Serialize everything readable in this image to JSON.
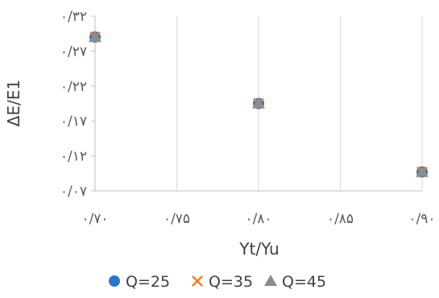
{
  "chart_data": {
    "type": "scatter",
    "xlabel": "Yt/Yu",
    "ylabel": "ΔE/E1",
    "xlim": [
      0.7,
      0.9
    ],
    "ylim": [
      0.07,
      0.32
    ],
    "x_ticks": [
      0.7,
      0.75,
      0.8,
      0.85,
      0.9
    ],
    "y_ticks": [
      0.07,
      0.12,
      0.17,
      0.22,
      0.27,
      0.32
    ],
    "x_tick_labels": [
      "۰/۷۰",
      "۰/۷۵",
      "۰/۸۰",
      "۰/۸۵",
      "۰/۹۰"
    ],
    "y_tick_labels": [
      "۰/۰۷",
      "۰/۱۲",
      "۰/۱۷",
      "۰/۲۲",
      "۰/۲۷",
      "۰/۳۲"
    ],
    "grid": "vertical",
    "legend_position": "bottom",
    "series": [
      {
        "name": "Q=25",
        "marker": "circle",
        "color": "#2e75c6",
        "x": [
          0.7,
          0.8,
          0.9
        ],
        "y": [
          0.29,
          0.195,
          0.097
        ]
      },
      {
        "name": "Q=35",
        "marker": "x",
        "color": "#ed7d31",
        "x": [
          0.7,
          0.8,
          0.9
        ],
        "y": [
          0.29,
          0.195,
          0.097
        ]
      },
      {
        "name": "Q=45",
        "marker": "triangle",
        "color": "#8c8c8c",
        "x": [
          0.7,
          0.8,
          0.9
        ],
        "y": [
          0.29,
          0.195,
          0.097
        ]
      }
    ]
  }
}
